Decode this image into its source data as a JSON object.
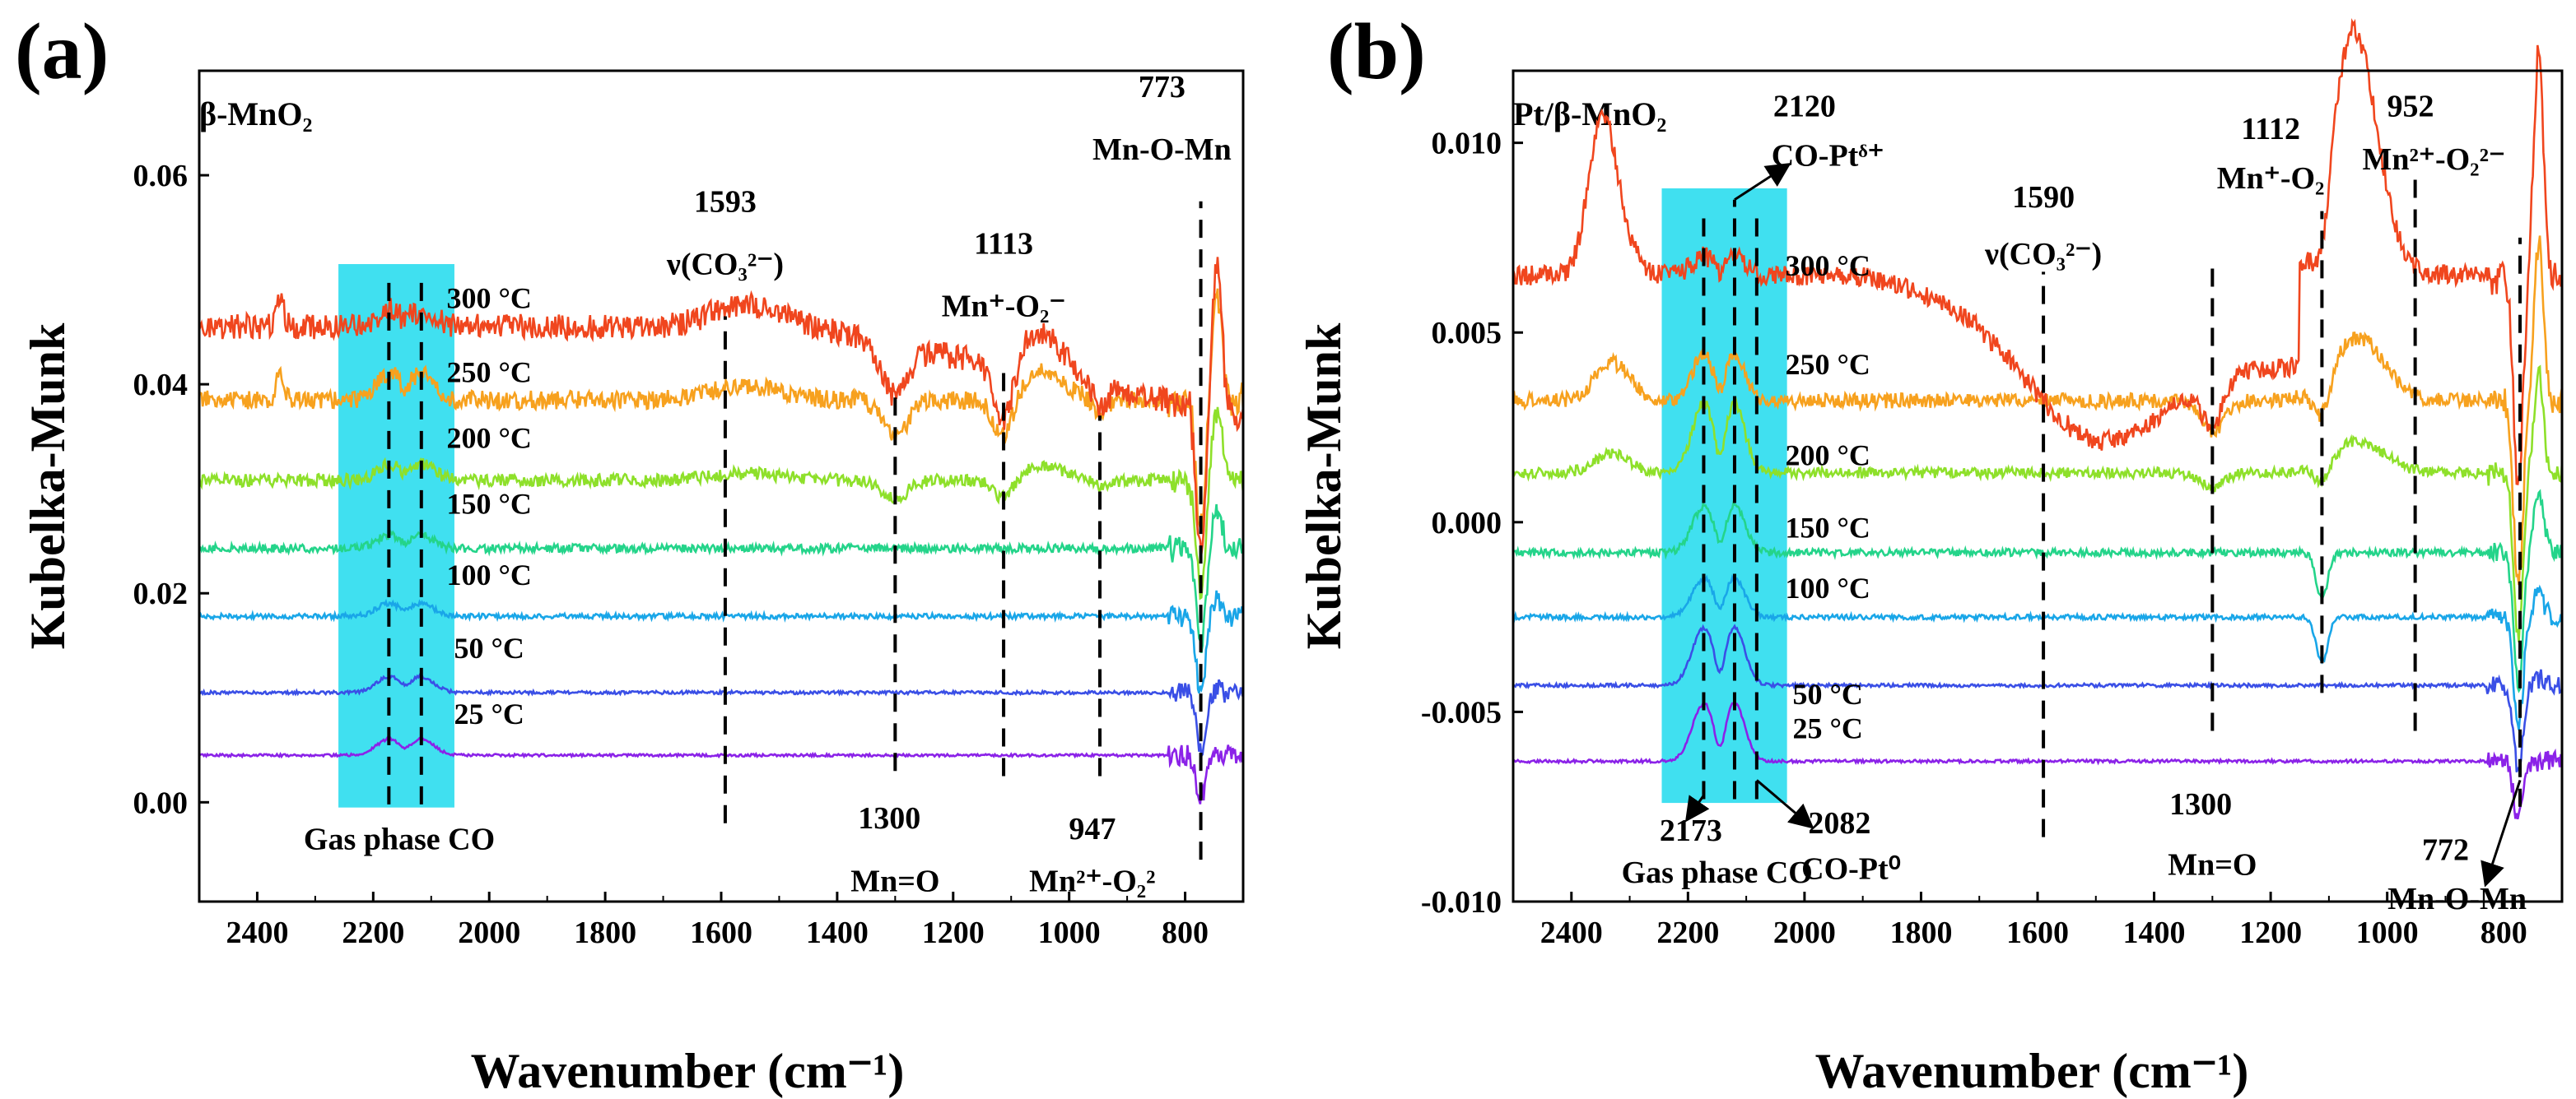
{
  "chart_data": [
    {
      "panel": "(a)",
      "type": "line",
      "sample": "β-MnO₂",
      "xlabel": "Wavenumber (cm⁻¹)",
      "ylabel": "Kubelka-Munk",
      "xlim": [
        2500,
        700
      ],
      "ylim": [
        -0.0095,
        0.07
      ],
      "x_reversed": true,
      "xticks": [
        2400,
        2200,
        2000,
        1800,
        1600,
        1400,
        1200,
        1000,
        800
      ],
      "yticks": [
        0.0,
        0.02,
        0.04,
        0.06
      ],
      "ytick_labels": [
        "0.00",
        "0.02",
        "0.04",
        "0.06"
      ],
      "highlight": {
        "x_range": [
          2260,
          2060
        ],
        "y_range": [
          -0.0005,
          0.0515
        ],
        "color": "#40e0f0",
        "label": "Gas phase CO"
      },
      "series": [
        {
          "name": "25 °C",
          "baseline": 0.0045,
          "color": "#8b22e8",
          "gas_peaks": 0.0015,
          "label_x": 2000,
          "label_y": 0.0075
        },
        {
          "name": "50 °C",
          "baseline": 0.0105,
          "color": "#3a4fe6",
          "gas_peaks": 0.0015,
          "label_x": 2000,
          "label_y": 0.0138
        },
        {
          "name": "100 °C",
          "baseline": 0.0178,
          "color": "#19a6e8",
          "gas_peaks": 0.0012,
          "label_x": 2000,
          "label_y": 0.0208
        },
        {
          "name": "150 °C",
          "baseline": 0.0243,
          "color": "#24d48a",
          "gas_peaks": 0.0012,
          "label_x": 2000,
          "label_y": 0.0276
        },
        {
          "name": "200 °C",
          "baseline": 0.0308,
          "color": "#8ee02a",
          "gas_peaks": 0.0015,
          "label_x": 2000,
          "label_y": 0.0339
        },
        {
          "name": "250 °C",
          "baseline": 0.0385,
          "color": "#f7a11e",
          "gas_peaks": 0.0025,
          "label_x": 2000,
          "label_y": 0.0402
        },
        {
          "name": "300 °C",
          "baseline": 0.0455,
          "color": "#f0461e",
          "gas_peaks": 0.0015,
          "label_x": 2000,
          "label_y": 0.0473
        }
      ],
      "vlines": [
        {
          "x": 2173,
          "y_from": -0.0002,
          "y_to": 0.0497
        },
        {
          "x": 2117,
          "y_from": -0.0002,
          "y_to": 0.0497
        },
        {
          "x": 1593,
          "y_from": -0.002,
          "y_to": 0.0465
        },
        {
          "x": 1300,
          "y_from": 0.003,
          "y_to": 0.039
        },
        {
          "x": 1113,
          "y_from": 0.0025,
          "y_to": 0.0415
        },
        {
          "x": 947,
          "y_from": 0.0025,
          "y_to": 0.037
        },
        {
          "x": 773,
          "y_from": -0.0055,
          "y_to": 0.0575
        }
      ],
      "annotations": [
        {
          "text": "1593",
          "x": 1593,
          "y": 0.0565
        },
        {
          "text": "ν(CO₃²⁻)",
          "x": 1593,
          "y": 0.0505
        },
        {
          "text": "1113",
          "x": 1113,
          "y": 0.0525
        },
        {
          "text": "Mn⁺-O₂⁻",
          "x": 1113,
          "y": 0.0465
        },
        {
          "text": "773",
          "x": 840,
          "y": 0.0675
        },
        {
          "text": "Mn-O-Mn",
          "x": 840,
          "y": 0.0615
        },
        {
          "text": "1300",
          "x": 1310,
          "y": -0.0025
        },
        {
          "text": "Mn=O",
          "x": 1300,
          "y": -0.0085
        },
        {
          "text": "947",
          "x": 960,
          "y": -0.0035
        },
        {
          "text": "Mn²⁺-O₂²",
          "x": 960,
          "y": -0.0085
        },
        {
          "text": "Gas phase CO",
          "x": 2155,
          "y": -0.0045
        }
      ]
    },
    {
      "panel": "(b)",
      "type": "line",
      "sample": "Pt/β-MnO₂",
      "xlabel": "Wavenumber (cm⁻¹)",
      "ylabel": "Kubelka-Munk",
      "xlim": [
        2500,
        700
      ],
      "ylim": [
        -0.01,
        0.0119
      ],
      "x_reversed": true,
      "xticks": [
        2400,
        2200,
        2000,
        1800,
        1600,
        1400,
        1200,
        1000,
        800
      ],
      "yticks": [
        -0.01,
        -0.005,
        0.0,
        0.005,
        0.01
      ],
      "ytick_labels": [
        "-0.010",
        "-0.005",
        "0.000",
        "0.005",
        "0.010"
      ],
      "highlight": {
        "x_range": [
          2245,
          2030
        ],
        "y_range": [
          -0.0074,
          0.0088
        ],
        "color": "#40e0f0",
        "label": "Gas phase CO"
      },
      "series": [
        {
          "name": "25 °C",
          "baseline": -0.0063,
          "color": "#8b22e8",
          "gas_peaks": 0.0015,
          "label_x": 1960,
          "label_y": -0.0057
        },
        {
          "name": "50 °C",
          "baseline": -0.0043,
          "color": "#3a4fe6",
          "gas_peaks": 0.0015,
          "label_x": 1960,
          "label_y": -0.0048
        },
        {
          "name": "100 °C",
          "baseline": -0.0025,
          "color": "#19a6e8",
          "gas_peaks": 0.001,
          "label_x": 1960,
          "label_y": -0.002
        },
        {
          "name": "150 °C",
          "baseline": -0.0008,
          "color": "#24d48a",
          "gas_peaks": 0.0012,
          "label_x": 1960,
          "label_y": -0.0004
        },
        {
          "name": "200 °C",
          "baseline": 0.0013,
          "color": "#8ee02a",
          "gas_peaks": 0.0018,
          "label_x": 1960,
          "label_y": 0.0015
        },
        {
          "name": "250 °C",
          "baseline": 0.0032,
          "color": "#f7a11e",
          "gas_peaks": 0.0012,
          "label_x": 1960,
          "label_y": 0.0039
        },
        {
          "name": "300 °C",
          "baseline": 0.0065,
          "color": "#f0461e",
          "gas_peaks": 0.0005,
          "label_x": 1960,
          "label_y": 0.0065
        }
      ],
      "vlines": [
        {
          "x": 2173,
          "y_from": -0.0073,
          "y_to": 0.0083
        },
        {
          "x": 2120,
          "y_from": -0.0073,
          "y_to": 0.0085
        },
        {
          "x": 2082,
          "y_from": -0.0073,
          "y_to": 0.0083
        },
        {
          "x": 1590,
          "y_from": -0.0083,
          "y_to": 0.0066
        },
        {
          "x": 1300,
          "y_from": -0.0055,
          "y_to": 0.0069
        },
        {
          "x": 1112,
          "y_from": -0.0045,
          "y_to": 0.0082
        },
        {
          "x": 952,
          "y_from": -0.0055,
          "y_to": 0.0092
        },
        {
          "x": 772,
          "y_from": -0.0075,
          "y_to": 0.0075
        }
      ],
      "annotations": [
        {
          "text": "2120",
          "x": 2000,
          "y": 0.0107
        },
        {
          "text": "CO-Ptᵟ⁺",
          "x": 1960,
          "y": 0.0094
        },
        {
          "text": "1590",
          "x": 1590,
          "y": 0.0083
        },
        {
          "text": "ν(CO₃²⁻)",
          "x": 1590,
          "y": 0.0068
        },
        {
          "text": "1112",
          "x": 1200,
          "y": 0.0101
        },
        {
          "text": "Mn⁺-O₂",
          "x": 1200,
          "y": 0.0088
        },
        {
          "text": "952",
          "x": 960,
          "y": 0.0107
        },
        {
          "text": "Mn²⁺-O₂²⁻",
          "x": 920,
          "y": 0.0093
        },
        {
          "text": "1300",
          "x": 1320,
          "y": -0.0077
        },
        {
          "text": "Mn=O",
          "x": 1300,
          "y": -0.0093
        },
        {
          "text": "2173",
          "x": 2195,
          "y": -0.0084
        },
        {
          "text": "Gas phase CO",
          "x": 2150,
          "y": -0.0095
        },
        {
          "text": "2082",
          "x": 1940,
          "y": -0.0082
        },
        {
          "text": "CO-Pt⁰",
          "x": 1920,
          "y": -0.0094
        },
        {
          "text": "772",
          "x": 900,
          "y": -0.0089
        },
        {
          "text": "Mn-O-Mn",
          "x": 880,
          "y": -0.0102
        }
      ]
    }
  ]
}
